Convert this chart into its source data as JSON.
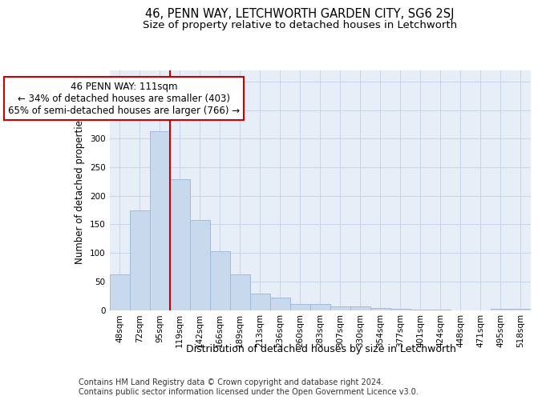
{
  "title": "46, PENN WAY, LETCHWORTH GARDEN CITY, SG6 2SJ",
  "subtitle": "Size of property relative to detached houses in Letchworth",
  "xlabel": "Distribution of detached houses by size in Letchworth",
  "ylabel": "Number of detached properties",
  "categories": [
    "48sqm",
    "72sqm",
    "95sqm",
    "119sqm",
    "142sqm",
    "166sqm",
    "189sqm",
    "213sqm",
    "236sqm",
    "260sqm",
    "283sqm",
    "307sqm",
    "330sqm",
    "354sqm",
    "377sqm",
    "401sqm",
    "424sqm",
    "448sqm",
    "471sqm",
    "495sqm",
    "518sqm"
  ],
  "values": [
    62,
    175,
    313,
    229,
    157,
    103,
    62,
    29,
    22,
    10,
    10,
    7,
    6,
    4,
    2,
    1,
    1,
    0,
    0,
    2,
    2
  ],
  "bar_color": "#c8d9ee",
  "bar_edge_color": "#9ab5d5",
  "vline_color": "#cc0000",
  "annotation_text": "46 PENN WAY: 111sqm\n← 34% of detached houses are smaller (403)\n65% of semi-detached houses are larger (766) →",
  "annotation_box_facecolor": "#ffffff",
  "annotation_box_edgecolor": "#cc0000",
  "ylim": [
    0,
    420
  ],
  "yticks": [
    0,
    50,
    100,
    150,
    200,
    250,
    300,
    350,
    400
  ],
  "grid_color": "#c8d4e8",
  "background_color": "#e8eef8",
  "footer": "Contains HM Land Registry data © Crown copyright and database right 2024.\nContains public sector information licensed under the Open Government Licence v3.0.",
  "title_fontsize": 10.5,
  "subtitle_fontsize": 9.5,
  "xlabel_fontsize": 9,
  "ylabel_fontsize": 8.5,
  "tick_fontsize": 7.5,
  "annotation_fontsize": 8.5,
  "footer_fontsize": 7
}
